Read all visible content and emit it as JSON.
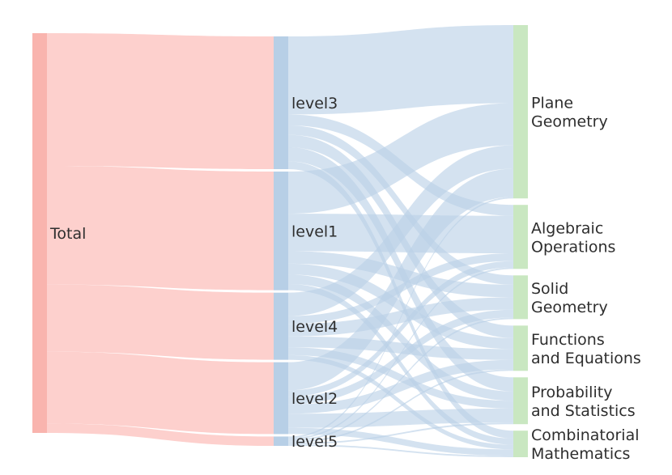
{
  "chart_data": {
    "type": "sankey",
    "colors": {
      "total_node": "#f9b4ae",
      "level_node": "#b7cfe6",
      "topic_node": "#c9e7c1",
      "total_flow": "#fdd0cd",
      "level_flow": "#b9d0e6"
    },
    "columns": [
      [
        {
          "id": "total",
          "label": "Total"
        }
      ],
      [
        {
          "id": "level3",
          "label": "level3"
        },
        {
          "id": "level1",
          "label": "level1"
        },
        {
          "id": "level4",
          "label": "level4"
        },
        {
          "id": "level2",
          "label": "level2"
        },
        {
          "id": "level5",
          "label": "level5"
        }
      ],
      [
        {
          "id": "plane_geometry",
          "label": "Plane Geometry",
          "label_lines": [
            "Plane",
            "Geometry"
          ]
        },
        {
          "id": "algebraic_operations",
          "label": "Algebraic Operations",
          "label_lines": [
            "Algebraic",
            "Operations"
          ]
        },
        {
          "id": "solid_geometry",
          "label": "Solid Geometry",
          "label_lines": [
            "Solid",
            "Geometry"
          ]
        },
        {
          "id": "functions_equations",
          "label": "Functions and Equations",
          "label_lines": [
            "Functions",
            "and Equations"
          ]
        },
        {
          "id": "probability_statistics",
          "label": "Probability and Statistics",
          "label_lines": [
            "Probability",
            "and Statistics"
          ]
        },
        {
          "id": "combinatorial_mathematics",
          "label": "Combinatorial Mathematics",
          "label_lines": [
            "Combinatorial",
            "Mathematics"
          ]
        }
      ]
    ],
    "links": [
      {
        "source": "total",
        "target": "level3",
        "value": 170
      },
      {
        "source": "total",
        "target": "level1",
        "value": 152
      },
      {
        "source": "total",
        "target": "level4",
        "value": 86
      },
      {
        "source": "total",
        "target": "level2",
        "value": 92
      },
      {
        "source": "total",
        "target": "level5",
        "value": 12
      },
      {
        "source": "level3",
        "target": "plane_geometry",
        "value": 100
      },
      {
        "source": "level3",
        "target": "algebraic_operations",
        "value": 14
      },
      {
        "source": "level3",
        "target": "solid_geometry",
        "value": 12
      },
      {
        "source": "level3",
        "target": "functions_equations",
        "value": 16
      },
      {
        "source": "level3",
        "target": "probability_statistics",
        "value": 18
      },
      {
        "source": "level3",
        "target": "combinatorial_mathematics",
        "value": 10
      },
      {
        "source": "level1",
        "target": "plane_geometry",
        "value": 54
      },
      {
        "source": "level1",
        "target": "algebraic_operations",
        "value": 48
      },
      {
        "source": "level1",
        "target": "solid_geometry",
        "value": 16
      },
      {
        "source": "level1",
        "target": "functions_equations",
        "value": 14
      },
      {
        "source": "level1",
        "target": "probability_statistics",
        "value": 12
      },
      {
        "source": "level1",
        "target": "combinatorial_mathematics",
        "value": 8
      },
      {
        "source": "level4",
        "target": "plane_geometry",
        "value": 30
      },
      {
        "source": "level4",
        "target": "algebraic_operations",
        "value": 10
      },
      {
        "source": "level4",
        "target": "solid_geometry",
        "value": 16
      },
      {
        "source": "level4",
        "target": "functions_equations",
        "value": 14
      },
      {
        "source": "level4",
        "target": "probability_statistics",
        "value": 10
      },
      {
        "source": "level4",
        "target": "combinatorial_mathematics",
        "value": 6
      },
      {
        "source": "level2",
        "target": "plane_geometry",
        "value": 36
      },
      {
        "source": "level2",
        "target": "algebraic_operations",
        "value": 8
      },
      {
        "source": "level2",
        "target": "solid_geometry",
        "value": 10
      },
      {
        "source": "level2",
        "target": "functions_equations",
        "value": 12
      },
      {
        "source": "level2",
        "target": "probability_statistics",
        "value": 18
      },
      {
        "source": "level2",
        "target": "combinatorial_mathematics",
        "value": 8
      },
      {
        "source": "level5",
        "target": "plane_geometry",
        "value": 2
      },
      {
        "source": "level5",
        "target": "algebraic_operations",
        "value": 2
      },
      {
        "source": "level5",
        "target": "solid_geometry",
        "value": 2
      },
      {
        "source": "level5",
        "target": "functions_equations",
        "value": 2
      },
      {
        "source": "level5",
        "target": "probability_statistics",
        "value": 2
      },
      {
        "source": "level5",
        "target": "combinatorial_mathematics",
        "value": 2
      }
    ]
  }
}
